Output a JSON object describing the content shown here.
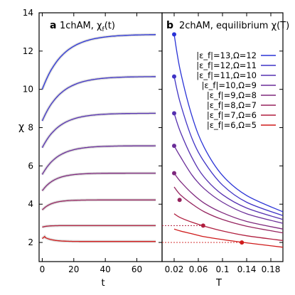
{
  "chart_data": [
    {
      "panel": "a",
      "title": "1chAM, χ_f(t)",
      "type": "line",
      "xlabel": "t",
      "ylabel": "χ",
      "xlim": [
        -2,
        76
      ],
      "ylim": [
        1,
        14
      ],
      "xticks": [
        0,
        20,
        40,
        60
      ],
      "yticks": [
        2,
        4,
        6,
        8,
        10,
        12,
        14
      ],
      "grid": false,
      "series": [
        {
          "color": "#2a33d6",
          "t0": 10.0,
          "tinf": 12.87,
          "tau": 13
        },
        {
          "color": "#3f33c5",
          "t0": 8.35,
          "tinf": 10.67,
          "tau": 12
        },
        {
          "color": "#5530b0",
          "t0": 6.95,
          "tinf": 8.75,
          "tau": 11
        },
        {
          "color": "#6a2d98",
          "t0": 5.55,
          "tinf": 7.05,
          "tau": 10
        },
        {
          "color": "#7e287d",
          "t0": 4.7,
          "tinf": 5.62,
          "tau": 8
        },
        {
          "color": "#95245f",
          "t0": 3.7,
          "tinf": 4.22,
          "tau": 6
        },
        {
          "color": "#b01f3f",
          "t0": 2.8,
          "tinf": 2.88,
          "tau": 3
        },
        {
          "color": "#cf1a1a",
          "t0": 2.35,
          "tinf": 2.05,
          "tau": 5
        }
      ]
    },
    {
      "panel": "b",
      "title": "2chAM, equilibrium χ(T)",
      "type": "line",
      "xlabel": "T",
      "ylabel": "",
      "xlim": [
        0.0,
        0.2
      ],
      "ylim": [
        1,
        14
      ],
      "xticks": [
        0.02,
        0.06,
        0.1,
        0.14,
        0.18
      ],
      "xticklabels": [
        "0.02",
        "0.06",
        "0.1",
        "0.14",
        "0.18"
      ],
      "legend_position": "top-right",
      "series": [
        {
          "name": "|ε_f|=13,Ω=12",
          "color": "#2a33d6",
          "T": [
            0.02,
            0.03,
            0.05,
            0.07,
            0.1,
            0.14,
            0.2
          ],
          "chi": [
            12.87,
            11.0,
            8.55,
            6.95,
            5.5,
            4.45,
            3.6
          ]
        },
        {
          "name": "|ε_f|=12,Ω=11",
          "color": "#3f33c5",
          "T": [
            0.02,
            0.03,
            0.05,
            0.07,
            0.1,
            0.14,
            0.2
          ],
          "chi": [
            10.67,
            9.3,
            7.4,
            6.2,
            5.0,
            4.1,
            3.4
          ]
        },
        {
          "name": "|ε_f|=11,Ω=10",
          "color": "#5530b0",
          "T": [
            0.02,
            0.03,
            0.05,
            0.07,
            0.1,
            0.14,
            0.2
          ],
          "chi": [
            8.75,
            7.8,
            6.4,
            5.4,
            4.5,
            3.8,
            3.2
          ]
        },
        {
          "name": "|ε_f|=10,Ω=9",
          "color": "#6a2d98",
          "T": [
            0.02,
            0.03,
            0.05,
            0.07,
            0.1,
            0.14,
            0.2
          ],
          "chi": [
            7.05,
            6.5,
            5.5,
            4.8,
            4.1,
            3.5,
            3.0
          ]
        },
        {
          "name": "|ε_f|=9,Ω=8",
          "color": "#7e287d",
          "T": [
            0.02,
            0.03,
            0.05,
            0.07,
            0.1,
            0.14,
            0.2
          ],
          "chi": [
            5.62,
            5.2,
            4.55,
            4.05,
            3.55,
            3.1,
            2.7
          ]
        },
        {
          "name": "|ε_f|=8,Ω=7",
          "color": "#95245f",
          "T": [
            0.02,
            0.03,
            0.05,
            0.07,
            0.1,
            0.14,
            0.2
          ],
          "chi": [
            4.9,
            4.5,
            4.0,
            3.6,
            3.2,
            2.85,
            2.5
          ]
        },
        {
          "name": "|ε_f|=7,Ω=6",
          "color": "#b01f3f",
          "T": [
            0.02,
            0.03,
            0.05,
            0.07,
            0.1,
            0.14,
            0.2
          ],
          "chi": [
            3.5,
            3.3,
            3.05,
            2.85,
            2.6,
            2.35,
            2.1
          ]
        },
        {
          "name": "|ε_f|=6,Ω=5",
          "color": "#cf1a1a",
          "T": [
            0.02,
            0.03,
            0.05,
            0.07,
            0.1,
            0.14,
            0.2
          ],
          "chi": [
            2.7,
            2.6,
            2.45,
            2.3,
            2.15,
            1.98,
            1.75
          ]
        }
      ],
      "markers": [
        {
          "T": 0.02,
          "chi": 12.87,
          "color": "#2a33d6"
        },
        {
          "T": 0.02,
          "chi": 10.67,
          "color": "#3f33c5"
        },
        {
          "T": 0.02,
          "chi": 8.75,
          "color": "#5530b0"
        },
        {
          "T": 0.02,
          "chi": 7.05,
          "color": "#6a2d98"
        },
        {
          "T": 0.02,
          "chi": 5.62,
          "color": "#7e287d"
        },
        {
          "T": 0.029,
          "chi": 4.22,
          "color": "#95245f"
        },
        {
          "T": 0.068,
          "chi": 2.88,
          "color": "#b01f3f"
        },
        {
          "T": 0.132,
          "chi": 2.0,
          "color": "#cf1a1a"
        }
      ],
      "dashed_guides": [
        {
          "chi": 2.88,
          "T_to": 0.068,
          "color": "#b01f3f"
        },
        {
          "chi": 2.0,
          "T_to": 0.132,
          "color": "#cf1a1a"
        }
      ]
    }
  ],
  "labels": {
    "panel_a_letter": "a",
    "panel_a_title": "1chAM, χ",
    "panel_a_sub": "f",
    "panel_a_arg": "(t)",
    "panel_b_letter": "b",
    "panel_b_title": "2chAM, equilibrium χ(T)",
    "ylabel": "χ",
    "xlabel_a": "t",
    "xlabel_b": "T"
  }
}
